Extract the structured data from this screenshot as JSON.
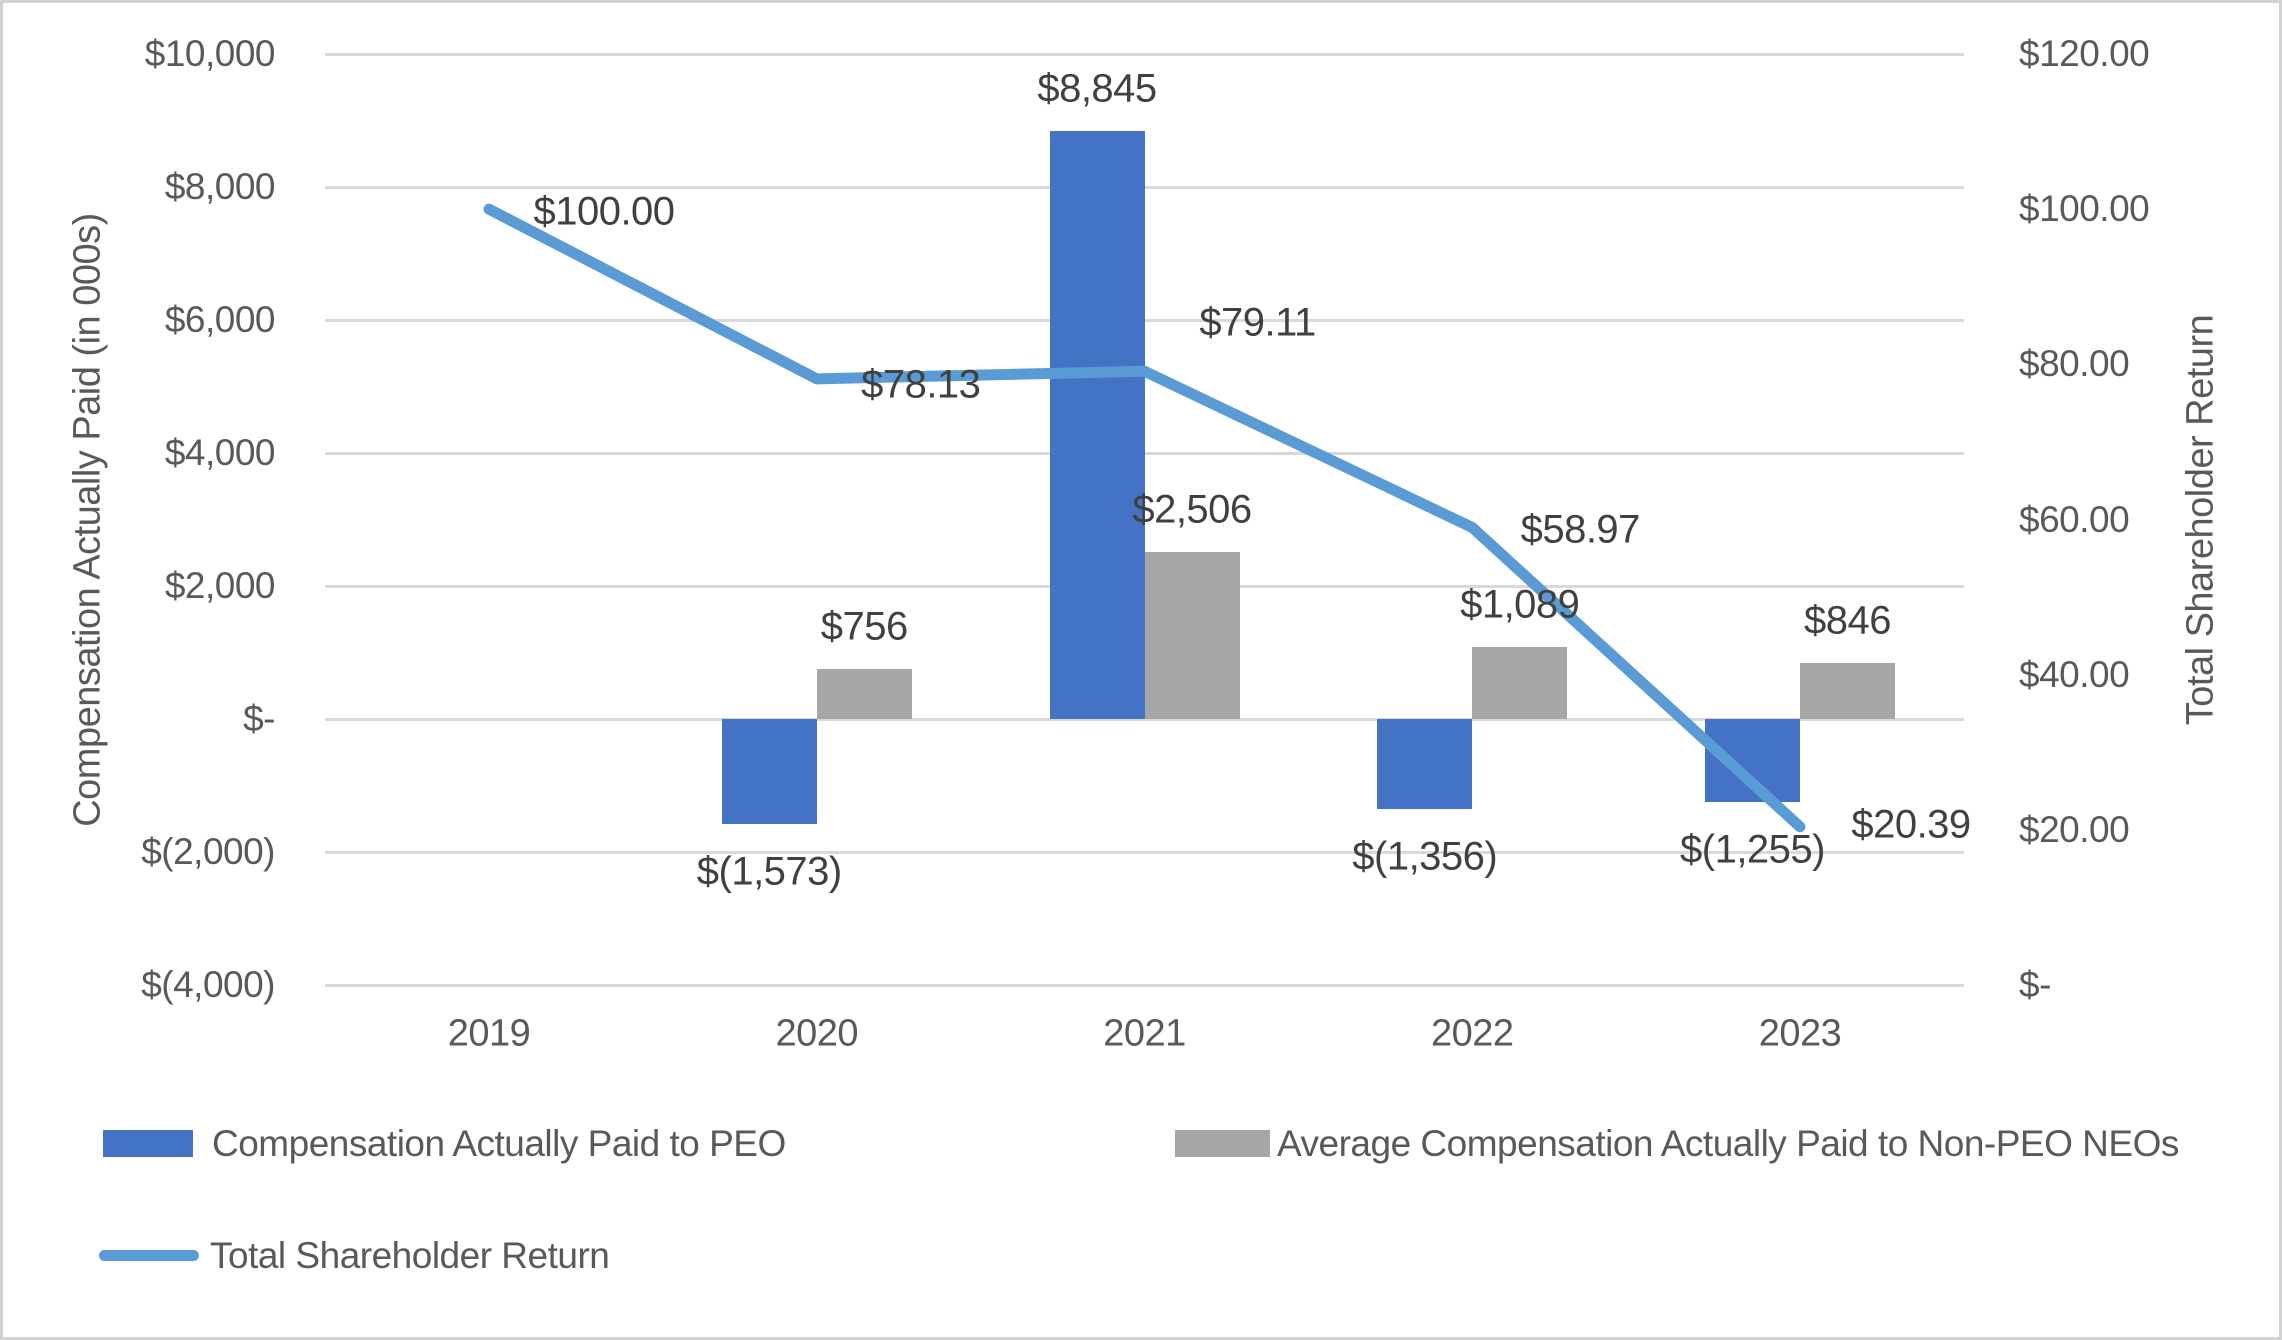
{
  "chart_data": {
    "type": "combo-bar-line",
    "categories": [
      "2019",
      "2020",
      "2021",
      "2022",
      "2023"
    ],
    "series": [
      {
        "name": "Compensation Actually Paid to PEO",
        "type": "bar",
        "axis": "left",
        "color": "#4472C4",
        "values": [
          null,
          -1573,
          8845,
          -1356,
          -1255
        ],
        "data_labels": [
          "",
          "$(1,573)",
          "$8,845",
          "$(1,356)",
          "$(1,255)"
        ]
      },
      {
        "name": "Average Compensation Actually Paid to Non-PEO NEOs",
        "type": "bar",
        "axis": "left",
        "color": "#A6A6A6",
        "values": [
          null,
          756,
          2506,
          1089,
          846
        ],
        "data_labels": [
          "",
          "$756",
          "$2,506",
          "$1,089",
          "$846"
        ]
      },
      {
        "name": "Total Shareholder Return",
        "type": "line",
        "axis": "right",
        "color": "#5B9BD5",
        "values": [
          100.0,
          78.13,
          79.11,
          58.97,
          20.39
        ],
        "data_labels": [
          "$100.00",
          "$78.13",
          "$79.11",
          "$58.97",
          "$20.39"
        ]
      }
    ],
    "left_axis": {
      "title": "Compensation Actually Paid (in 000s)",
      "min": -4000,
      "max": 10000,
      "step": 2000,
      "tick_labels": [
        "$10,000",
        "$8,000",
        "$6,000",
        "$4,000",
        "$2,000",
        "$-",
        "$(2,000)",
        "$(4,000)"
      ]
    },
    "right_axis": {
      "title": "Total Shareholder Return",
      "min": 0,
      "max": 120,
      "step": 20,
      "tick_labels": [
        "$120.00",
        "$100.00",
        "$80.00",
        "$60.00",
        "$40.00",
        "$20.00",
        "$-"
      ]
    },
    "grid": true,
    "legend_position": "bottom-left",
    "styles": {
      "grid_color": "#D9D9D9",
      "tick_text_color": "#595959",
      "data_label_color": "#404040",
      "background": "#FFFFFF",
      "border_color": "#D2D2D2"
    }
  }
}
